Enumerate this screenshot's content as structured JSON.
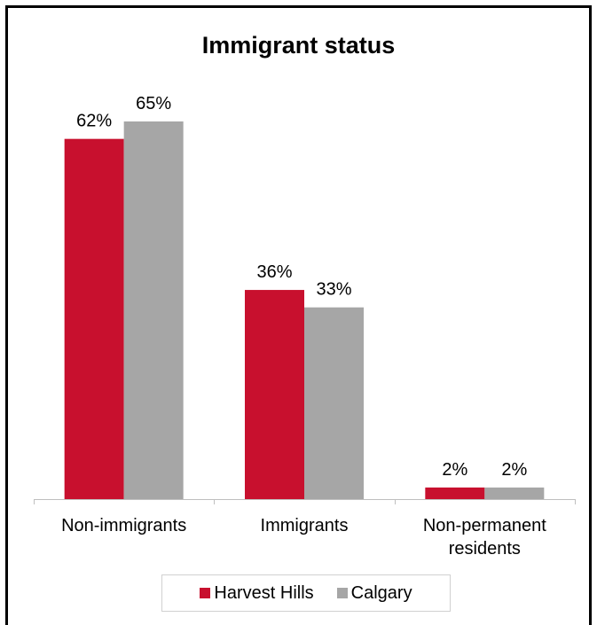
{
  "chart_data": {
    "type": "bar",
    "title": "Immigrant status",
    "categories": [
      "Non-immigrants",
      "Immigrants",
      "Non-permanent residents"
    ],
    "category_label_lines": [
      [
        "Non-immigrants"
      ],
      [
        "Immigrants"
      ],
      [
        "Non-permanent",
        "residents"
      ]
    ],
    "series": [
      {
        "name": "Harvest Hills",
        "values": [
          62,
          36,
          2
        ],
        "labels": [
          "62%",
          "36%",
          "2%"
        ],
        "color": "#c8102e"
      },
      {
        "name": "Calgary",
        "values": [
          65,
          33,
          2
        ],
        "labels": [
          "65%",
          "33%",
          "2%"
        ],
        "color": "#a6a6a6"
      }
    ],
    "ylim": [
      0,
      65
    ],
    "grid": false,
    "legend_position": "bottom"
  }
}
